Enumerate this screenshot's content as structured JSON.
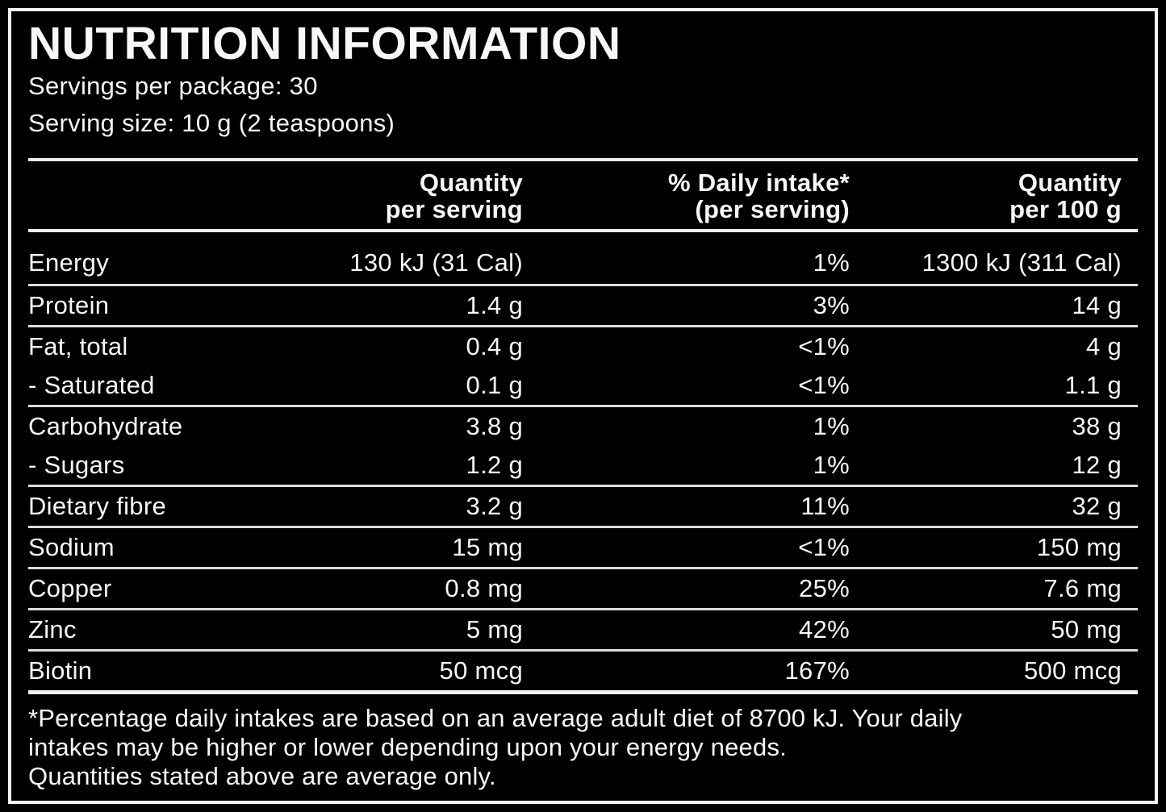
{
  "panel": {
    "title": "NUTRITION INFORMATION",
    "servings_per_package": "Servings per package: 30",
    "serving_size": "Serving size: 10 g (2 teaspoons)"
  },
  "table": {
    "headers": {
      "per_serving": [
        "Quantity",
        "per serving"
      ],
      "daily_intake": [
        "% Daily intake*",
        "(per serving)"
      ],
      "per_100g": [
        "Quantity",
        "per 100 g"
      ]
    },
    "rows": [
      {
        "name": "Energy",
        "per_serving": "130 kJ (31 Cal)",
        "daily_intake": "1%",
        "per_100g": "1300 kJ (311 Cal)"
      },
      {
        "name": "Protein",
        "per_serving": "1.4 g",
        "daily_intake": "3%",
        "per_100g": "14 g"
      },
      {
        "name": "Fat, total",
        "per_serving": "0.4 g",
        "daily_intake": "<1%",
        "per_100g": "4 g"
      },
      {
        "name": "- Saturated",
        "per_serving": "0.1 g",
        "daily_intake": "<1%",
        "per_100g": "1.1 g"
      },
      {
        "name": "Carbohydrate",
        "per_serving": "3.8 g",
        "daily_intake": "1%",
        "per_100g": "38 g"
      },
      {
        "name": "- Sugars",
        "per_serving": "1.2 g",
        "daily_intake": "1%",
        "per_100g": "12 g"
      },
      {
        "name": "Dietary fibre",
        "per_serving": "3.2 g",
        "daily_intake": "11%",
        "per_100g": "32 g"
      },
      {
        "name": "Sodium",
        "per_serving": "15 mg",
        "daily_intake": "<1%",
        "per_100g": "150 mg"
      },
      {
        "name": "Copper",
        "per_serving": "0.8 mg",
        "daily_intake": "25%",
        "per_100g": "7.6 mg"
      },
      {
        "name": "Zinc",
        "per_serving": "5 mg",
        "daily_intake": "42%",
        "per_100g": "50 mg"
      },
      {
        "name": "Biotin",
        "per_serving": "50 mcg",
        "daily_intake": "167%",
        "per_100g": "500 mcg"
      }
    ]
  },
  "footnote": {
    "lines": [
      "*Percentage daily intakes are based on an average adult diet of 8700 kJ. Your daily",
      "intakes may be higher or lower depending upon your energy needs.",
      "Quantities stated above are average only."
    ]
  },
  "colors": {
    "background": "#000000",
    "text": "#f7f7f7",
    "divider": "#dcdcdc"
  }
}
